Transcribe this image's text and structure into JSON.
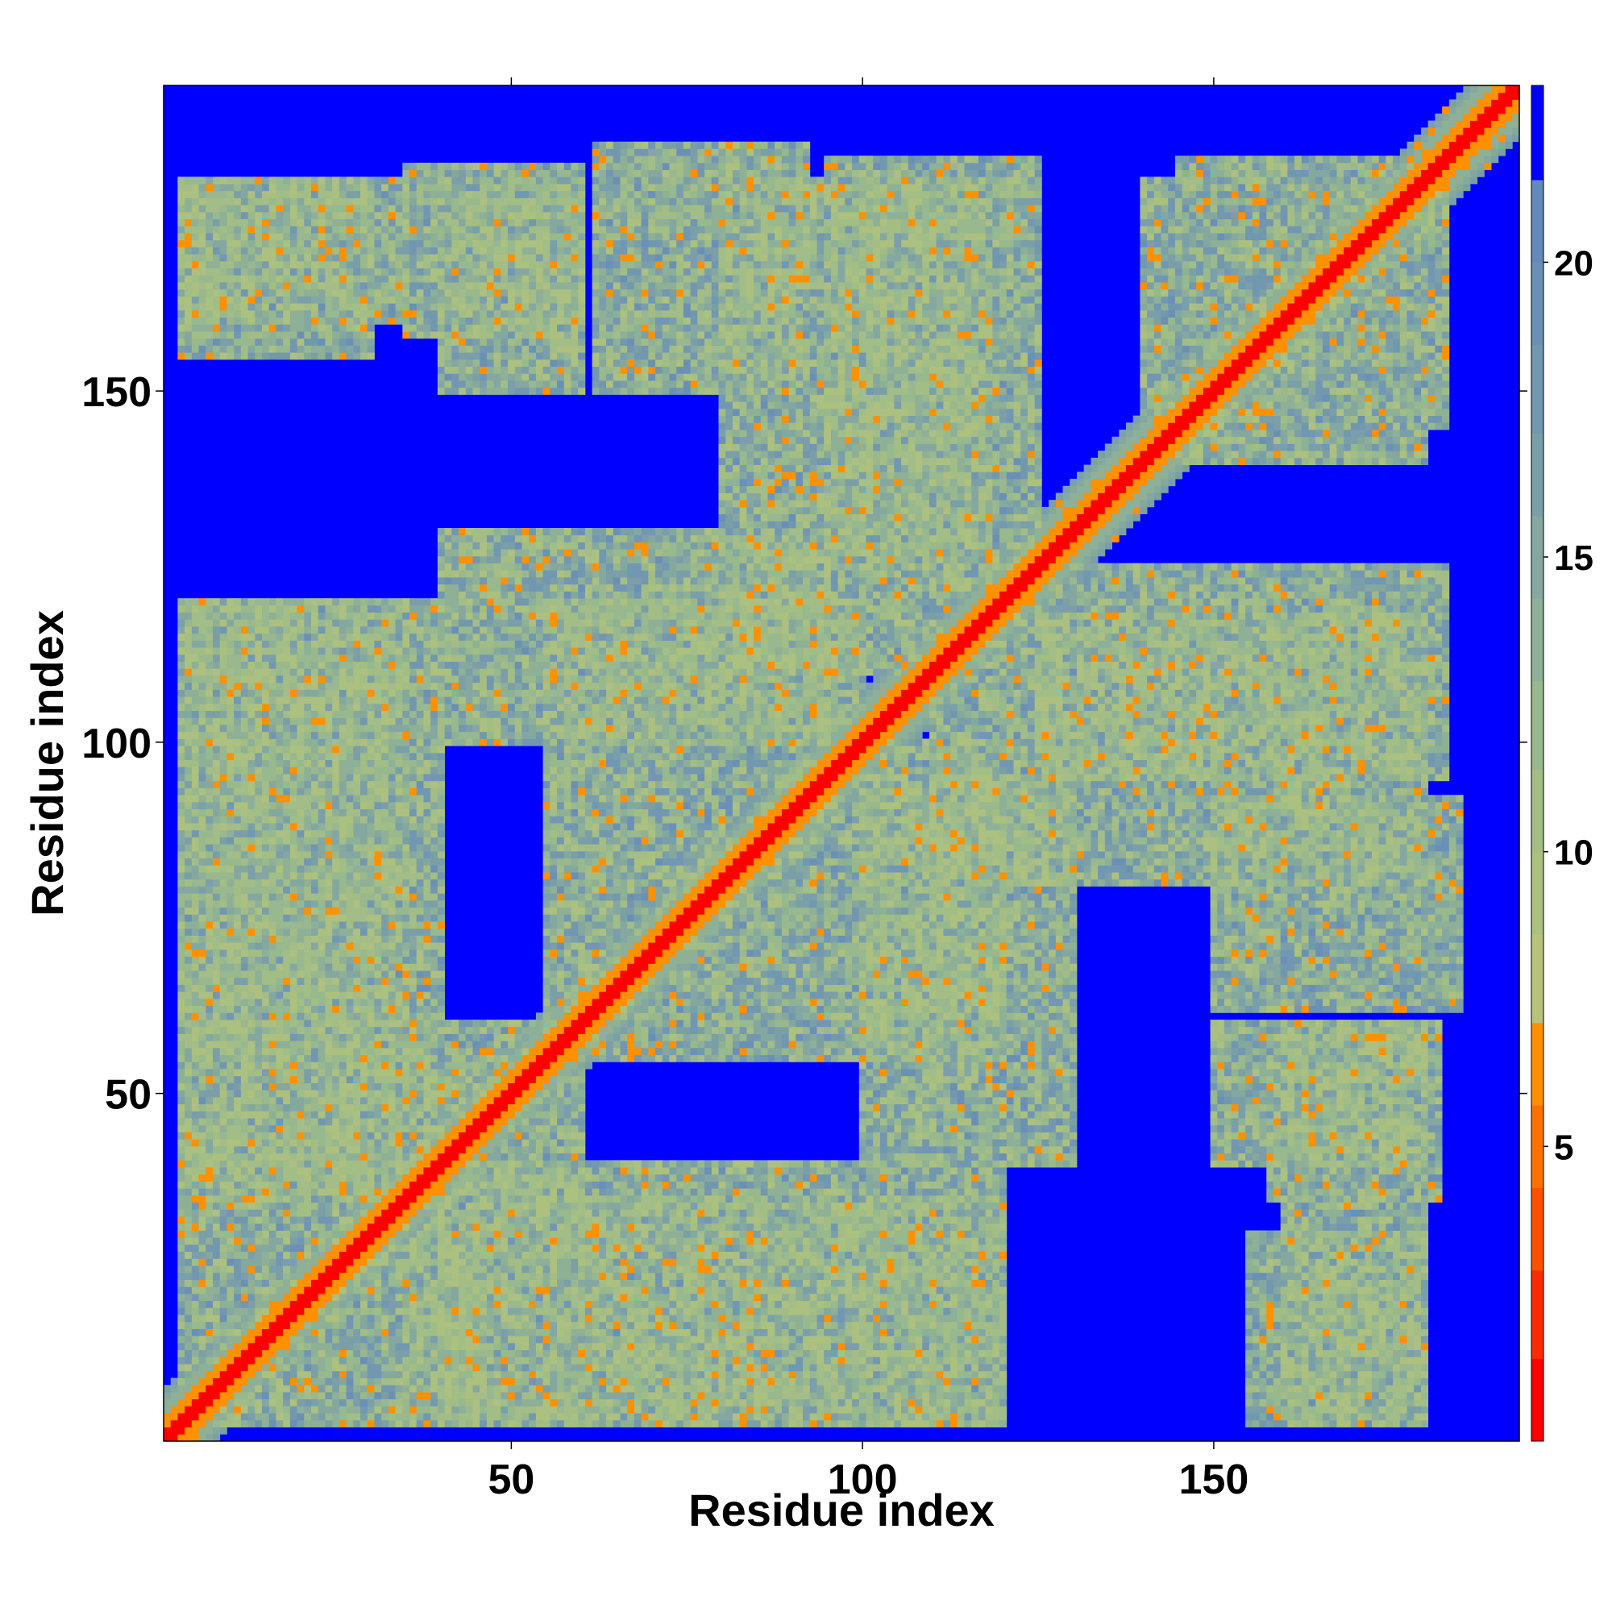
{
  "chart_data": {
    "type": "heatmap",
    "title": "",
    "xlabel": "Residue index",
    "ylabel": "Residue index",
    "n_residues": 193,
    "xlim": [
      1,
      193
    ],
    "ylim": [
      1,
      193
    ],
    "x_ticks": [
      50,
      100,
      150
    ],
    "y_ticks": [
      50,
      100,
      150
    ],
    "x_tick_labels": [
      "50",
      "100",
      "150"
    ],
    "y_tick_labels": [
      "50",
      "100",
      "150"
    ],
    "value_label": "",
    "value_range": [
      0,
      23
    ],
    "colorbar_ticks": [
      5,
      10,
      15,
      20
    ],
    "colorbar_tick_labels": [
      "5",
      "10",
      "15",
      "20"
    ],
    "colorbar_bins": [
      {
        "from": 0,
        "to": 1.4,
        "color": "#ff0000"
      },
      {
        "from": 1.4,
        "to": 2.9,
        "color": "#ff2a00"
      },
      {
        "from": 2.9,
        "to": 4.3,
        "color": "#ff5000"
      },
      {
        "from": 4.3,
        "to": 5.7,
        "color": "#ff7000"
      },
      {
        "from": 5.7,
        "to": 7.1,
        "color": "#ff9000"
      },
      {
        "from": 7.1,
        "to": 8.6,
        "color": "#b8c27c"
      },
      {
        "from": 8.6,
        "to": 10.0,
        "color": "#acc080"
      },
      {
        "from": 10.0,
        "to": 11.4,
        "color": "#a3bd86"
      },
      {
        "from": 11.4,
        "to": 12.9,
        "color": "#98b88e"
      },
      {
        "from": 12.9,
        "to": 14.3,
        "color": "#8eb096"
      },
      {
        "from": 14.3,
        "to": 15.7,
        "color": "#84a8a0"
      },
      {
        "from": 15.7,
        "to": 17.1,
        "color": "#7a9fa8"
      },
      {
        "from": 17.1,
        "to": 18.6,
        "color": "#7297b0"
      },
      {
        "from": 18.6,
        "to": 20.0,
        "color": "#6a90b6"
      },
      {
        "from": 20.0,
        "to": 21.4,
        "color": "#648abc"
      },
      {
        "from": 21.4,
        "to": 23.0,
        "color": "#0000ff"
      }
    ],
    "cutoff_color": "#0000ff",
    "cutoff": 21.4,
    "contact_blocks": [
      {
        "x": [
          1,
          193
        ],
        "y": [
          1,
          193
        ],
        "diag_width": 6
      }
    ],
    "domains": [
      {
        "x": [
          3,
          35
        ],
        "y": [
          160,
          180
        ],
        "level": 14
      },
      {
        "x": [
          35,
          60
        ],
        "y": [
          158,
          182
        ],
        "level": 14
      },
      {
        "x": [
          62,
          92
        ],
        "y": [
          150,
          185
        ],
        "level": 14
      },
      {
        "x": [
          95,
          125
        ],
        "y": [
          125,
          183
        ],
        "level": 14
      },
      {
        "x": [
          145,
          180
        ],
        "y": [
          140,
          183
        ],
        "level": 14
      },
      {
        "x": [
          3,
          35
        ],
        "y": [
          60,
          120
        ],
        "level": 14
      },
      {
        "x": [
          40,
          95
        ],
        "y": [
          100,
          130
        ],
        "level": 14
      },
      {
        "x": [
          110,
          180
        ],
        "y": [
          80,
          118
        ],
        "level": 14
      },
      {
        "x": [
          150,
          180
        ],
        "y": [
          40,
          60
        ],
        "level": 14
      },
      {
        "x": [
          3,
          60
        ],
        "y": [
          35,
          60
        ],
        "level": 14
      },
      {
        "x": [
          3,
          45
        ],
        "y": [
          3,
          30
        ],
        "level": 14
      },
      {
        "x": [
          40,
          120
        ],
        "y": [
          3,
          40
        ],
        "level": 14
      },
      {
        "x": [
          155,
          180
        ],
        "y": [
          3,
          30
        ],
        "level": 14
      },
      {
        "x": [
          60,
          120
        ],
        "y": [
          55,
          100
        ],
        "level": 14
      }
    ]
  }
}
